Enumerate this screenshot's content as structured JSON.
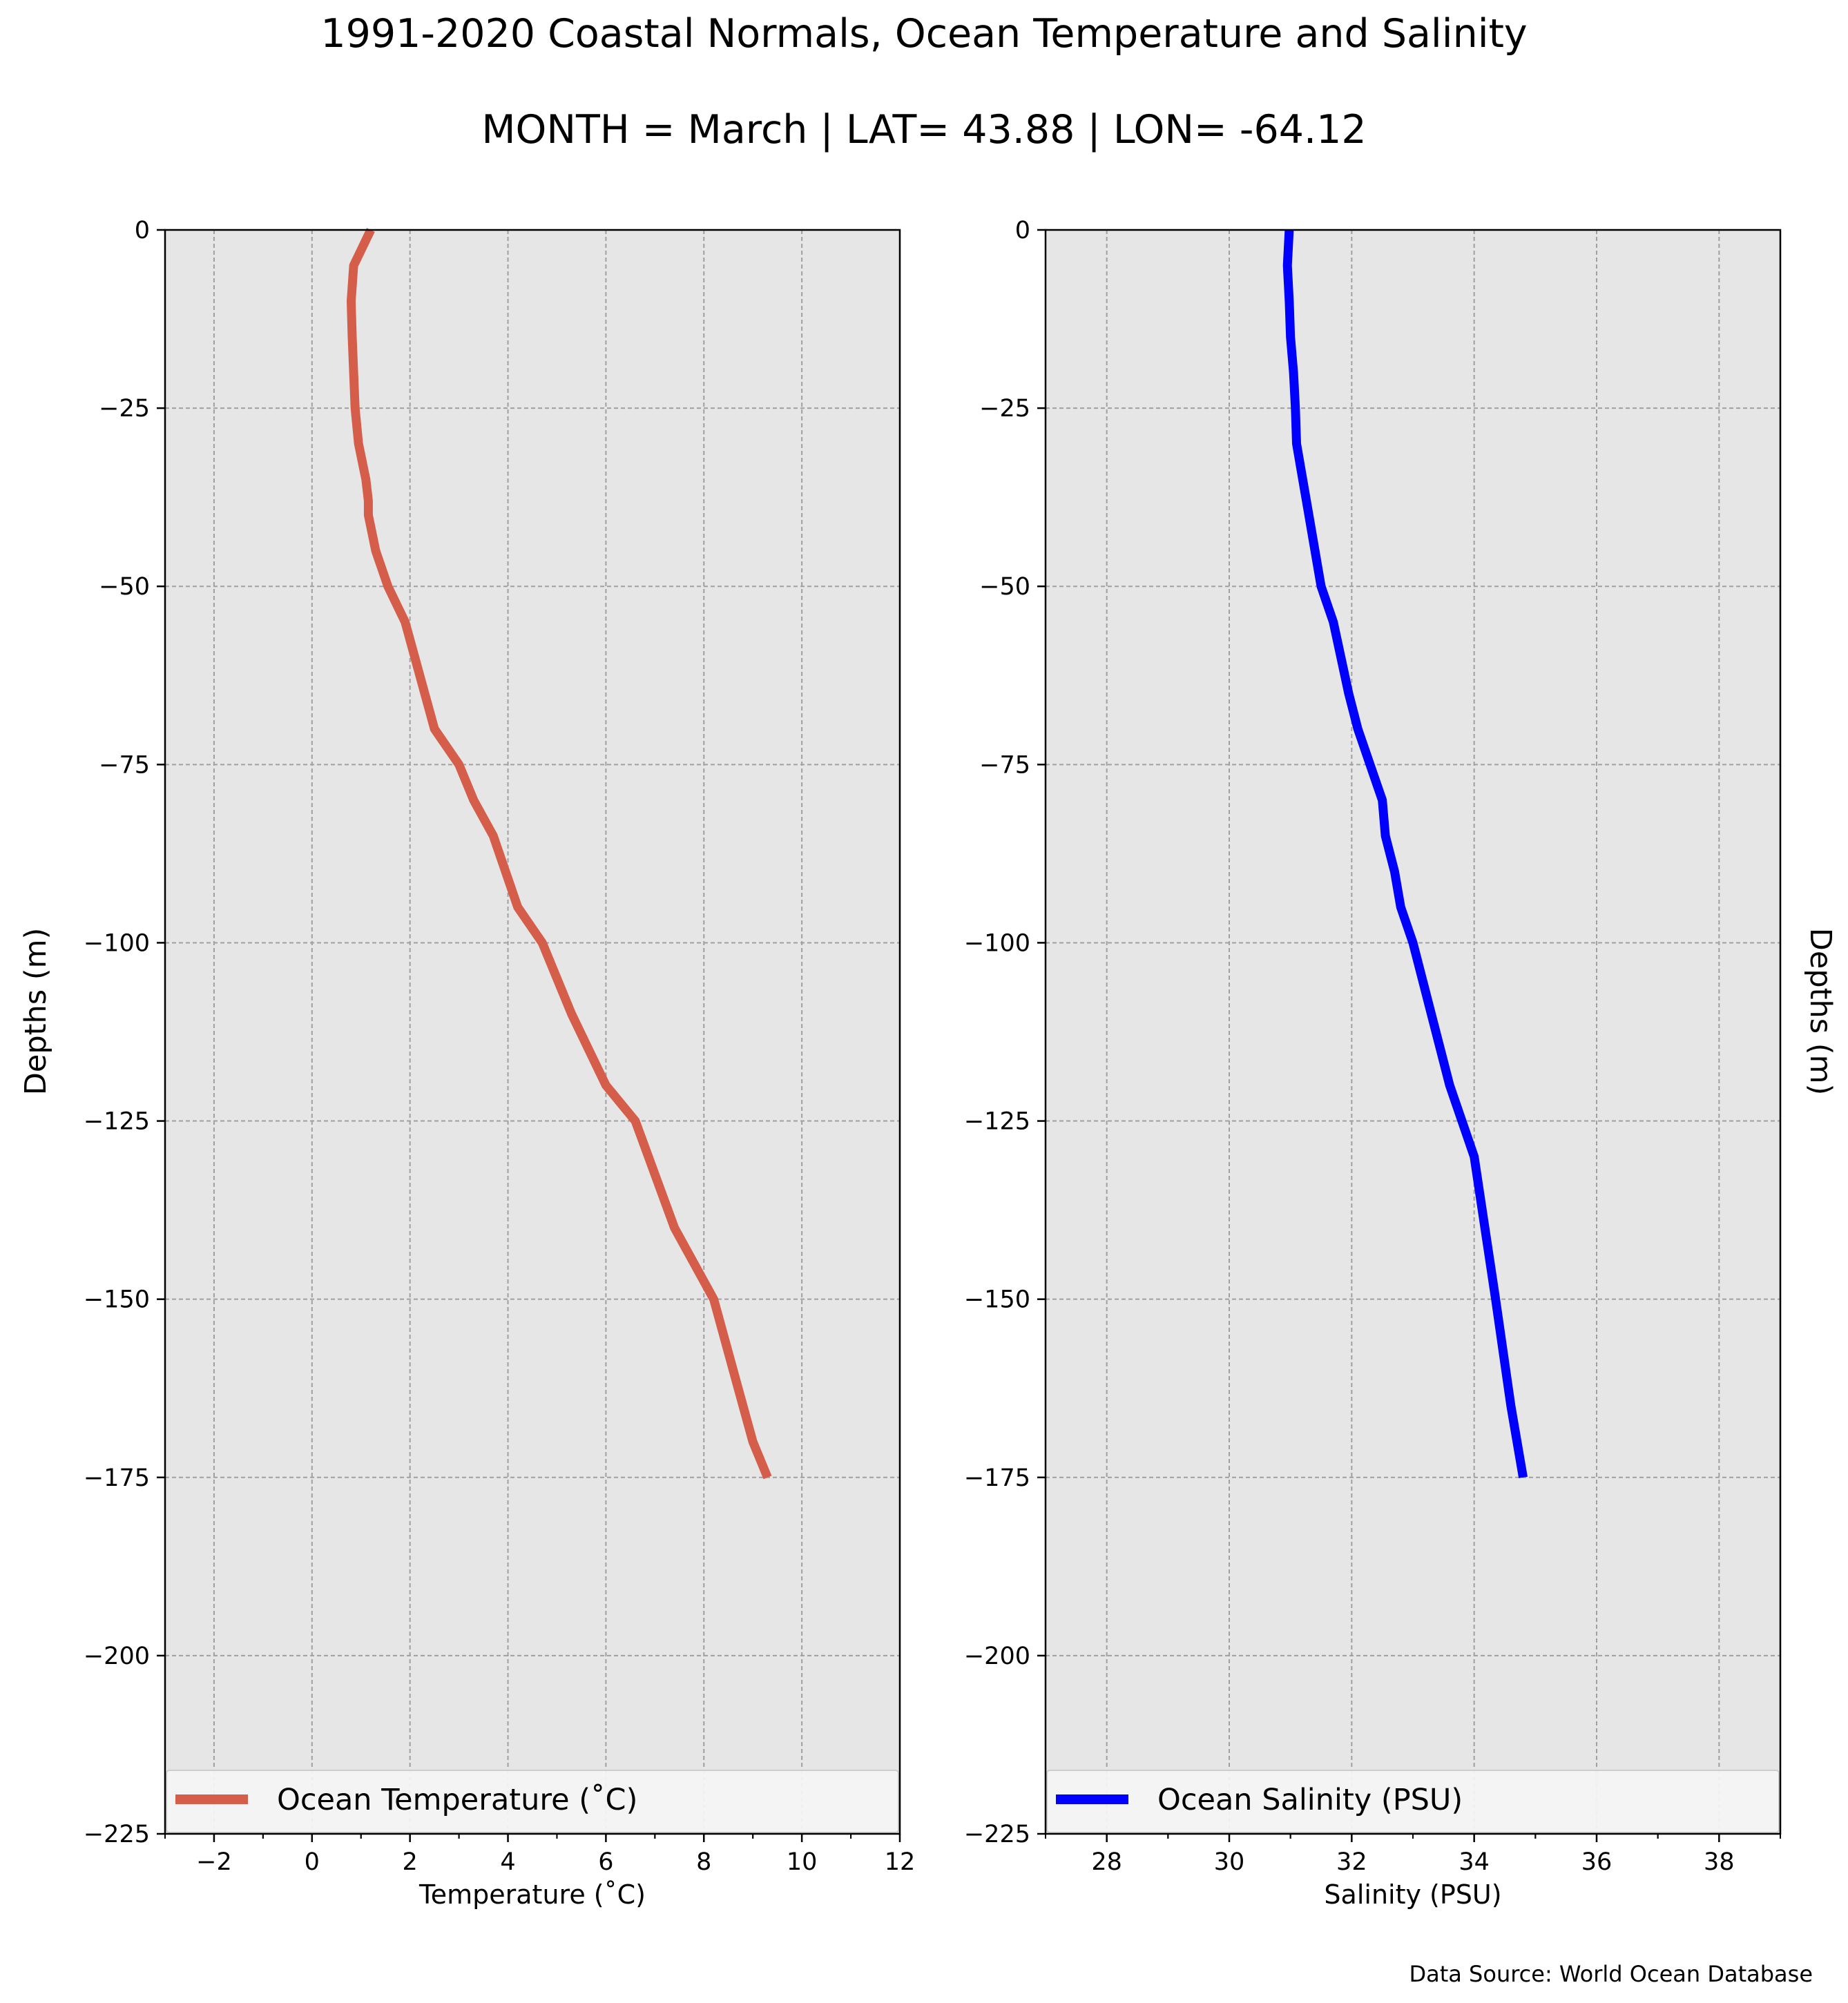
{
  "title": "1991-2020 Coastal Normals, Ocean Temperature and Salinity",
  "subtitle": "MONTH = March | LAT= 43.88 | LON= -64.12",
  "source": "Data Source: World Ocean Database",
  "chart_data": [
    {
      "type": "line",
      "xlabel": "Temperature ($^\\circ$C)",
      "ylabel": "Depths (m)",
      "xlim": [
        -3,
        12
      ],
      "ylim": [
        -225,
        0
      ],
      "xticks": [
        -2,
        0,
        2,
        4,
        6,
        8,
        10,
        12
      ],
      "xtick_labels": [
        "−2",
        "0",
        "2",
        "4",
        "6",
        "8",
        "10",
        "12"
      ],
      "yticks": [
        0,
        -25,
        -50,
        -75,
        -100,
        -125,
        -150,
        -175,
        -200,
        -225
      ],
      "ytick_labels": [
        "0",
        "−25",
        "−50",
        "−75",
        "−100",
        "−125",
        "−150",
        "−175",
        "−200",
        "−225"
      ],
      "grid": true,
      "legend": "bottom",
      "series": [
        {
          "name": "Ocean Temperature ($^\\circ$C)",
          "color": "#d55e4a",
          "x": [
            1.2,
            0.85,
            0.8,
            0.82,
            0.85,
            0.88,
            0.95,
            1.1,
            1.15,
            1.15,
            1.3,
            1.55,
            1.9,
            2.1,
            2.5,
            3.0,
            3.3,
            3.7,
            3.95,
            4.2,
            4.7,
            5.3,
            6.0,
            6.6,
            7.4,
            8.2,
            8.6,
            9.0,
            9.3
          ],
          "y": [
            0,
            -5,
            -10,
            -15,
            -20,
            -25,
            -30,
            -35,
            -38,
            -40,
            -45,
            -50,
            -55,
            -60,
            -70,
            -75,
            -80,
            -85,
            -90,
            -95,
            -100,
            -110,
            -120,
            -125,
            -140,
            -150,
            -160,
            -170,
            -175
          ]
        }
      ]
    },
    {
      "type": "line",
      "xlabel": "Salinity (PSU)",
      "ylabel": "Depths (m)",
      "xlim": [
        27,
        39
      ],
      "ylim": [
        -225,
        0
      ],
      "xticks": [
        28,
        30,
        32,
        34,
        36,
        38
      ],
      "xtick_labels": [
        "28",
        "30",
        "32",
        "34",
        "36",
        "38"
      ],
      "yticks": [
        0,
        -25,
        -50,
        -75,
        -100,
        -125,
        -150,
        -175,
        -200,
        -225
      ],
      "ytick_labels": [
        "0",
        "−25",
        "−50",
        "−75",
        "−100",
        "−125",
        "−150",
        "−175",
        "−200",
        "−225"
      ],
      "grid": true,
      "legend": "bottom",
      "series": [
        {
          "name": "Ocean Salinity (PSU)",
          "color": "#0000ff",
          "x": [
            30.98,
            30.95,
            30.98,
            31.0,
            31.05,
            31.08,
            31.1,
            31.2,
            31.3,
            31.5,
            31.7,
            31.95,
            32.1,
            32.3,
            32.5,
            32.55,
            32.7,
            32.8,
            33.0,
            33.6,
            34.0,
            34.35,
            34.6,
            34.8
          ],
          "y": [
            0,
            -5,
            -10,
            -15,
            -20,
            -25,
            -30,
            -35,
            -40,
            -50,
            -55,
            -65,
            -70,
            -75,
            -80,
            -85,
            -90,
            -95,
            -100,
            -120,
            -130,
            -150,
            -165,
            -175
          ]
        }
      ]
    }
  ]
}
